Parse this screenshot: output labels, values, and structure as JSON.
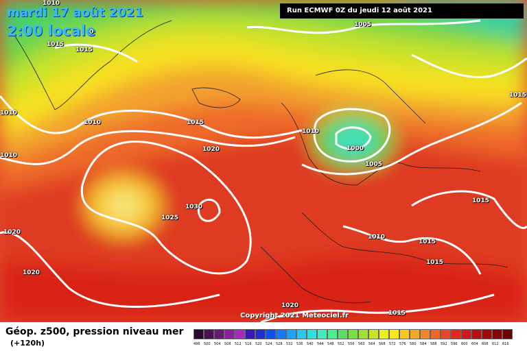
{
  "map": {
    "date_title": "mardi 17 août 2021",
    "time_title": "2:00 locale",
    "run_info": "Run ECMWF 0Z du jeudi 12 août 2021",
    "copyright": "Copyright 2021 Meteociel.fr",
    "colors": {
      "deep_blue": "#0a3d9a",
      "cyan": "#3ee0e0",
      "green": "#5ed24a",
      "yellow_green": "#c8e426",
      "yellow": "#f5f51e",
      "orange": "#f2a22c",
      "red_orange": "#e35a28",
      "red": "#d92318",
      "isobar": "#ffffff"
    },
    "isobar_labels": [
      "1010",
      "1015",
      "1015",
      "1015",
      "0",
      "1005",
      "1010",
      "1010",
      "1010",
      "1015",
      "1010",
      "1020",
      "1000",
      "1005",
      "1030",
      "1025",
      "1020",
      "1015",
      "1015",
      "1010",
      "1015",
      "1015",
      "1020",
      "1020",
      "1015"
    ]
  },
  "legend": {
    "title": "Géop. z500, pression niveau mer",
    "subtitle": "(+120h)",
    "scale_values": [
      "496",
      "500",
      "504",
      "508",
      "512",
      "516",
      "520",
      "524",
      "528",
      "532",
      "536",
      "540",
      "544",
      "548",
      "552",
      "556",
      "560",
      "564",
      "568",
      "572",
      "576",
      "580",
      "584",
      "588",
      "592",
      "596",
      "600",
      "604",
      "608",
      "612",
      "616"
    ],
    "scale_colors": [
      "#2a0a2e",
      "#4a1050",
      "#6a1878",
      "#8a20a0",
      "#a828c0",
      "#3818b0",
      "#2030d0",
      "#1050f0",
      "#1878f8",
      "#20a0f8",
      "#28c8f0",
      "#30e0e0",
      "#3ef0c0",
      "#48f090",
      "#5ae060",
      "#78e040",
      "#a0e030",
      "#c8e428",
      "#e8f020",
      "#f8e820",
      "#f8c820",
      "#f4a828",
      "#f08828",
      "#ec6828",
      "#e84828",
      "#e02820",
      "#d01818",
      "#b81010",
      "#a00808",
      "#880404",
      "#700000"
    ]
  }
}
